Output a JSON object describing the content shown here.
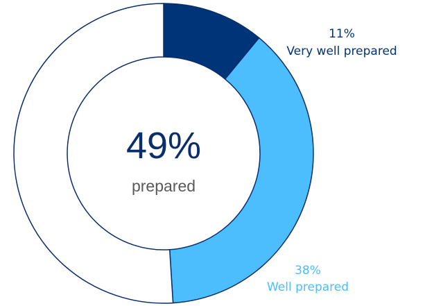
{
  "chart_data": {
    "type": "pie",
    "style": "donut",
    "slices": [
      {
        "label": "Very well prepared",
        "percent_label": "11%",
        "value": 11,
        "color": "#003478"
      },
      {
        "label": "Well prepared",
        "percent_label": "38%",
        "value": 38,
        "color": "#4cbdfd"
      }
    ],
    "remainder_color": "#ffffff",
    "outline_color": "#0a2d6b",
    "center": {
      "value": "49%",
      "label": "prepared",
      "value_color": "#0a2d6b",
      "label_color": "#595959"
    }
  }
}
